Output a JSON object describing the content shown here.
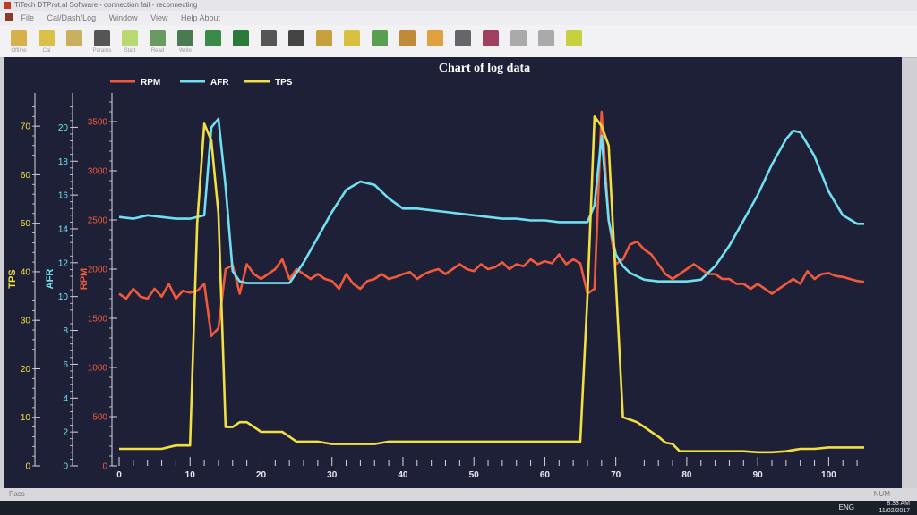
{
  "window": {
    "title": "TiTech DTProt.al Software - connection fail - reconnecting"
  },
  "menu": {
    "items": [
      "File",
      "Cal/Dash/Log",
      "Window",
      "View",
      "Help About"
    ]
  },
  "toolbar": {
    "buttons": [
      {
        "icon": "open-icon",
        "label": "Offline",
        "color": "#d8b04a"
      },
      {
        "icon": "cal-icon",
        "label": "Cal",
        "color": "#d8c04a"
      },
      {
        "icon": "save-icon",
        "label": "",
        "color": "#c8b060"
      },
      {
        "icon": "params-icon",
        "label": "Params",
        "color": "#555"
      },
      {
        "icon": "play-icon",
        "label": "Start",
        "color": "#b8d870"
      },
      {
        "icon": "arrow-down-icon",
        "label": "Read",
        "color": "#6a9a60"
      },
      {
        "icon": "arrow-up-icon",
        "label": "Write",
        "color": "#4a7a50"
      },
      {
        "icon": "chart-icon",
        "label": "",
        "color": "#3a8a4a"
      },
      {
        "icon": "excel-icon",
        "label": "",
        "color": "#2a7a3a"
      },
      {
        "icon": "dash-icon",
        "label": "",
        "color": "#555"
      },
      {
        "icon": "m-icon",
        "label": "",
        "color": "#444"
      },
      {
        "icon": "map-icon",
        "label": "",
        "color": "#c8a040"
      },
      {
        "icon": "3d-icon",
        "label": "",
        "color": "#d8c040"
      },
      {
        "icon": "2d-icon",
        "label": "",
        "color": "#58a050"
      },
      {
        "icon": "gauge-icon",
        "label": "",
        "color": "#c08a3a"
      },
      {
        "icon": "dot-icon",
        "label": "",
        "color": "#e0a040"
      },
      {
        "icon": "table-icon",
        "label": "",
        "color": "#666"
      },
      {
        "icon": "log-chart-icon",
        "label": "",
        "color": "#a04060"
      },
      {
        "icon": "line-icon",
        "label": "",
        "color": "#aaa"
      },
      {
        "icon": "grid-icon",
        "label": "",
        "color": "#aaa"
      },
      {
        "icon": "help-icon",
        "label": "",
        "color": "#c8d040"
      }
    ]
  },
  "status": {
    "left": "Pass",
    "right": "NUM"
  },
  "taskbar": {
    "lang": "ENG",
    "time": "8:33 AM",
    "date": "11/02/2017"
  },
  "chart_data": {
    "type": "line",
    "title": "Chart of log data",
    "xlabel": "",
    "xlim": [
      0,
      105
    ],
    "xticks": [
      0,
      10,
      20,
      30,
      40,
      50,
      60,
      70,
      80,
      90,
      100
    ],
    "legend_position": "top-left",
    "axes": [
      {
        "label": "TPS",
        "color": "#f0e040",
        "ylim": [
          0,
          75
        ],
        "ticks": [
          0,
          10,
          20,
          30,
          40,
          50,
          60,
          70
        ]
      },
      {
        "label": "AFR",
        "color": "#70e0f0",
        "ylim": [
          0,
          21.5
        ],
        "ticks": [
          0,
          2,
          4,
          6,
          8,
          10,
          12,
          14,
          16,
          18,
          20
        ]
      },
      {
        "label": "RPM",
        "color": "#f05a3a",
        "ylim": [
          0,
          3700
        ],
        "ticks": [
          0,
          500,
          1000,
          1500,
          2000,
          2500,
          3000,
          3500
        ]
      }
    ],
    "series": [
      {
        "name": "RPM",
        "axis": 2,
        "color": "#f05a3a",
        "x": [
          0,
          1,
          2,
          3,
          4,
          5,
          6,
          7,
          8,
          9,
          10,
          11,
          12,
          13,
          14,
          15,
          16,
          17,
          18,
          19,
          20,
          21,
          22,
          23,
          24,
          25,
          26,
          27,
          28,
          29,
          30,
          31,
          32,
          33,
          34,
          35,
          36,
          37,
          38,
          39,
          40,
          41,
          42,
          43,
          44,
          45,
          46,
          47,
          48,
          49,
          50,
          51,
          52,
          53,
          54,
          55,
          56,
          57,
          58,
          59,
          60,
          61,
          62,
          63,
          64,
          65,
          66,
          67,
          68,
          69,
          70,
          71,
          72,
          73,
          74,
          75,
          76,
          77,
          78,
          79,
          80,
          81,
          82,
          83,
          84,
          85,
          86,
          87,
          88,
          89,
          90,
          91,
          92,
          93,
          94,
          95,
          96,
          97,
          98,
          99,
          100,
          101,
          102,
          103,
          104,
          105
        ],
        "y": [
          1750,
          1700,
          1800,
          1720,
          1700,
          1800,
          1720,
          1850,
          1700,
          1780,
          1760,
          1780,
          1850,
          1320,
          1400,
          2000,
          2040,
          1750,
          2050,
          1950,
          1900,
          1950,
          2000,
          2100,
          1900,
          2000,
          1950,
          1900,
          1950,
          1900,
          1880,
          1800,
          1950,
          1850,
          1800,
          1880,
          1900,
          1950,
          1900,
          1920,
          1950,
          1970,
          1900,
          1950,
          1980,
          2000,
          1950,
          2000,
          2050,
          2000,
          1980,
          2050,
          2000,
          2020,
          2070,
          2000,
          2050,
          2030,
          2100,
          2050,
          2080,
          2060,
          2150,
          2050,
          2100,
          2060,
          1750,
          1800,
          3600,
          2500,
          2050,
          2100,
          2250,
          2280,
          2200,
          2150,
          2050,
          1950,
          1900,
          1950,
          2000,
          2050,
          2000,
          1950,
          1950,
          1900,
          1900,
          1850,
          1850,
          1800,
          1850,
          1800,
          1750,
          1800,
          1850,
          1900,
          1850,
          1980,
          1900,
          1950,
          1960,
          1930,
          1920,
          1900,
          1880,
          1870
        ]
      },
      {
        "name": "AFR",
        "axis": 1,
        "color": "#70e0f0",
        "x": [
          0,
          2,
          4,
          6,
          8,
          10,
          12,
          13,
          14,
          15,
          16,
          17,
          18,
          19,
          20,
          22,
          24,
          26,
          28,
          30,
          32,
          34,
          36,
          38,
          40,
          42,
          44,
          46,
          48,
          50,
          52,
          54,
          56,
          58,
          60,
          62,
          64,
          66,
          67,
          68,
          69,
          70,
          71,
          72,
          73,
          74,
          76,
          78,
          80,
          82,
          84,
          86,
          88,
          90,
          92,
          94,
          95,
          96,
          98,
          100,
          102,
          104,
          105
        ],
        "y": [
          14.7,
          14.6,
          14.8,
          14.7,
          14.6,
          14.6,
          14.8,
          20.0,
          20.5,
          16.5,
          11.5,
          10.9,
          10.8,
          10.8,
          10.8,
          10.8,
          10.8,
          12.0,
          13.5,
          15.0,
          16.3,
          16.8,
          16.6,
          15.8,
          15.2,
          15.2,
          15.1,
          15.0,
          14.9,
          14.8,
          14.7,
          14.6,
          14.6,
          14.5,
          14.5,
          14.4,
          14.4,
          14.4,
          15.4,
          19.5,
          14.5,
          12.5,
          11.8,
          11.4,
          11.2,
          11.0,
          10.9,
          10.9,
          10.9,
          11.0,
          11.8,
          13.0,
          14.5,
          16.0,
          17.8,
          19.3,
          19.8,
          19.7,
          18.3,
          16.2,
          14.8,
          14.3,
          14.3
        ]
      },
      {
        "name": "TPS",
        "axis": 0,
        "color": "#f0e040",
        "x": [
          0,
          2,
          4,
          6,
          8,
          10,
          11,
          12,
          13,
          14,
          15,
          16,
          17,
          18,
          19,
          20,
          21,
          22,
          23,
          24,
          25,
          26,
          27,
          28,
          30,
          32,
          34,
          36,
          38,
          40,
          42,
          44,
          46,
          48,
          50,
          52,
          54,
          56,
          58,
          60,
          62,
          64,
          65,
          66,
          67,
          68,
          69,
          70,
          71,
          72,
          73,
          74,
          75,
          76,
          77,
          78,
          79,
          80,
          82,
          84,
          86,
          88,
          90,
          92,
          94,
          96,
          98,
          100,
          102,
          104,
          105
        ],
        "y": [
          3.5,
          3.5,
          3.5,
          3.5,
          4.2,
          4.2,
          50,
          70.5,
          67,
          52,
          8,
          8,
          9,
          9,
          8,
          7,
          7,
          7,
          7,
          6,
          5,
          5,
          5,
          5,
          4.5,
          4.5,
          4.5,
          4.5,
          5,
          5,
          5,
          5,
          5,
          5,
          5,
          5,
          5,
          5,
          5,
          5,
          5,
          5,
          5,
          35,
          72,
          70,
          66,
          38,
          10,
          9.5,
          9,
          8,
          7,
          6,
          4.8,
          4.5,
          3,
          3,
          3,
          3,
          3,
          3,
          2.8,
          2.8,
          3,
          3.5,
          3.5,
          3.8,
          3.8,
          3.8,
          3.8
        ]
      }
    ]
  }
}
